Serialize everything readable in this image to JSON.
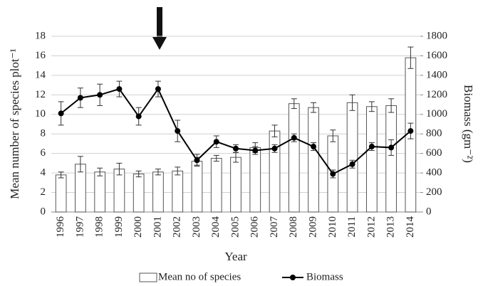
{
  "chart_data": {
    "type": "bar",
    "categories": [
      "1996",
      "1997",
      "1998",
      "1999",
      "2000",
      "2001",
      "2002",
      "2003",
      "2004",
      "2005",
      "2006",
      "2007",
      "2008",
      "2009",
      "2010",
      "2011",
      "2012",
      "2013",
      "2014"
    ],
    "series": [
      {
        "name": "Mean no of species",
        "color": "#ffffff",
        "values": [
          3.8,
          4.9,
          4.1,
          4.4,
          3.9,
          4.1,
          4.2,
          5.2,
          5.5,
          5.6,
          6.6,
          8.3,
          11.1,
          10.7,
          7.8,
          11.2,
          10.8,
          10.9,
          15.8
        ],
        "errors": [
          0.3,
          0.8,
          0.4,
          0.6,
          0.3,
          0.3,
          0.4,
          0.4,
          0.3,
          0.5,
          0.5,
          0.6,
          0.5,
          0.5,
          0.6,
          0.8,
          0.5,
          0.7,
          1.1
        ]
      },
      {
        "name": "Biomass",
        "type": "line",
        "axis": "y2",
        "color": "#000000",
        "values": [
          1010,
          1170,
          1200,
          1260,
          980,
          1260,
          830,
          530,
          720,
          650,
          630,
          650,
          760,
          670,
          390,
          490,
          670,
          660,
          830
        ],
        "errors": [
          120,
          100,
          110,
          80,
          90,
          80,
          110,
          60,
          60,
          40,
          40,
          40,
          40,
          40,
          40,
          40,
          40,
          80,
          80
        ]
      }
    ],
    "x_label": "Year",
    "y_label": "Mean number of species plot⁻¹",
    "y2_label": "Biomass (gm⁻²)",
    "ylim": [
      0,
      18
    ],
    "yticks": [
      0,
      2,
      4,
      6,
      8,
      10,
      12,
      14,
      16,
      18
    ],
    "y2lim": [
      0,
      1800
    ],
    "y2ticks": [
      0,
      200,
      400,
      600,
      800,
      1000,
      1200,
      1400,
      1600,
      1800
    ],
    "grid": true
  }
}
